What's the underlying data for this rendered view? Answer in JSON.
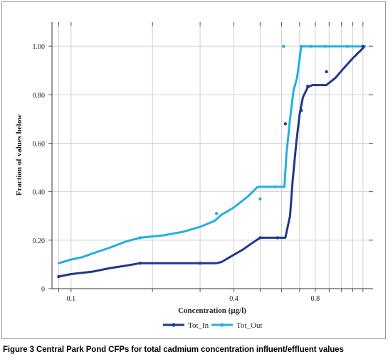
{
  "figure_caption": {
    "label": "Figure 3",
    "text": "Central Park Pond CFPs for total cadmium concentration influent/effluent values"
  },
  "colors": {
    "tot_in": "#1f3a8a",
    "tot_out": "#25aee3",
    "grid": "#cfcfcf",
    "axis": "#333333"
  },
  "chart_data": {
    "type": "line",
    "xlabel": "Concentration (µg/l)",
    "ylabel": "Fraction of values below",
    "x_scale": "log",
    "xlim": [
      0.085,
      1.3
    ],
    "ylim": [
      0,
      1.1
    ],
    "x_ticks": [
      0.1,
      0.4,
      0.8
    ],
    "x_tick_labels": [
      "0.1",
      "0.4",
      "0.8"
    ],
    "y_ticks": [
      0,
      0.2,
      0.4,
      0.6,
      0.8,
      1.0
    ],
    "y_tick_labels": [
      "0",
      "0.20",
      "0.40",
      "0.60",
      "0.80",
      "1.00"
    ],
    "grid": true,
    "legend_position": "bottom",
    "series": [
      {
        "name": "Tot_In",
        "color": "#1f3a8a",
        "line": [
          [
            0.09,
            0.05
          ],
          [
            0.1,
            0.06
          ],
          [
            0.12,
            0.07
          ],
          [
            0.14,
            0.085
          ],
          [
            0.16,
            0.095
          ],
          [
            0.18,
            0.105
          ],
          [
            0.25,
            0.105
          ],
          [
            0.3,
            0.105
          ],
          [
            0.345,
            0.105
          ],
          [
            0.36,
            0.11
          ],
          [
            0.4,
            0.14
          ],
          [
            0.43,
            0.16
          ],
          [
            0.47,
            0.19
          ],
          [
            0.5,
            0.21
          ],
          [
            0.58,
            0.21
          ],
          [
            0.62,
            0.21
          ],
          [
            0.645,
            0.3
          ],
          [
            0.66,
            0.45
          ],
          [
            0.68,
            0.6
          ],
          [
            0.7,
            0.72
          ],
          [
            0.72,
            0.79
          ],
          [
            0.75,
            0.83
          ],
          [
            0.78,
            0.84
          ],
          [
            0.84,
            0.84
          ],
          [
            0.88,
            0.84
          ],
          [
            0.95,
            0.87
          ],
          [
            1.02,
            0.91
          ],
          [
            1.1,
            0.95
          ],
          [
            1.22,
            1.0
          ]
        ],
        "points": [
          [
            0.09,
            0.05
          ],
          [
            0.18,
            0.105
          ],
          [
            0.3,
            0.105
          ],
          [
            0.5,
            0.21
          ],
          [
            0.58,
            0.21
          ],
          [
            0.62,
            0.68
          ],
          [
            0.71,
            0.735
          ],
          [
            0.75,
            0.835
          ],
          [
            0.88,
            0.895
          ],
          [
            1.2,
            1.0
          ]
        ]
      },
      {
        "name": "Tot_Out",
        "color": "#25aee3",
        "line": [
          [
            0.09,
            0.105
          ],
          [
            0.1,
            0.12
          ],
          [
            0.11,
            0.13
          ],
          [
            0.12,
            0.145
          ],
          [
            0.14,
            0.17
          ],
          [
            0.16,
            0.195
          ],
          [
            0.18,
            0.21
          ],
          [
            0.22,
            0.22
          ],
          [
            0.26,
            0.235
          ],
          [
            0.3,
            0.255
          ],
          [
            0.34,
            0.28
          ],
          [
            0.36,
            0.305
          ],
          [
            0.4,
            0.335
          ],
          [
            0.45,
            0.38
          ],
          [
            0.49,
            0.42
          ],
          [
            0.6,
            0.42
          ],
          [
            0.615,
            0.42
          ],
          [
            0.625,
            0.55
          ],
          [
            0.645,
            0.7
          ],
          [
            0.665,
            0.82
          ],
          [
            0.685,
            0.87
          ],
          [
            0.7,
            0.95
          ],
          [
            0.71,
            1.0
          ],
          [
            0.75,
            1.0
          ],
          [
            1.0,
            1.0
          ],
          [
            1.22,
            1.0
          ]
        ],
        "points": [
          [
            0.18,
            0.21
          ],
          [
            0.345,
            0.31
          ],
          [
            0.5,
            0.37
          ],
          [
            0.57,
            0.42
          ],
          [
            0.61,
            1.0
          ],
          [
            0.71,
            1.0
          ],
          [
            0.77,
            1.0
          ],
          [
            0.87,
            1.0
          ],
          [
            1.05,
            1.0
          ]
        ]
      }
    ]
  }
}
